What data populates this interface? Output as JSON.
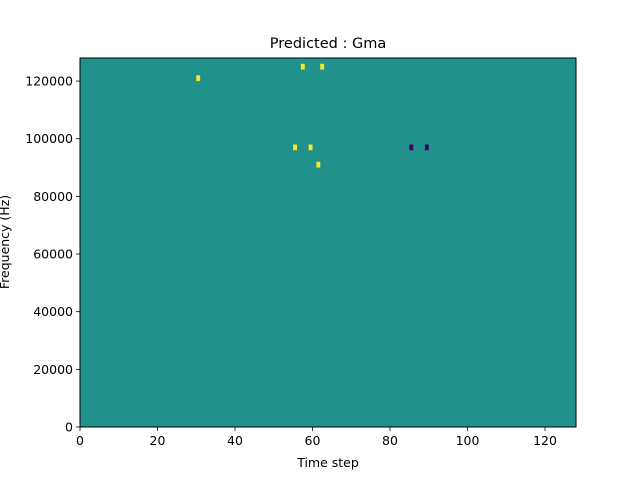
{
  "chart_data": {
    "type": "heatmap",
    "title": "Predicted : Gma",
    "xlabel": "Time step",
    "ylabel": "Frequency (Hz)",
    "xlim": [
      0,
      128
    ],
    "ylim": [
      0,
      128000
    ],
    "n_time_steps": 128,
    "n_freq_bins": 64,
    "x_ticks": [
      0,
      20,
      40,
      60,
      80,
      100,
      120
    ],
    "y_ticks": [
      0,
      20000,
      40000,
      60000,
      80000,
      100000,
      120000
    ],
    "x_tick_labels": [
      "0",
      "20",
      "40",
      "60",
      "80",
      "100",
      "120"
    ],
    "y_tick_labels": [
      "0",
      "20000",
      "40000",
      "60000",
      "80000",
      "100000",
      "120000"
    ],
    "colormap": "viridis",
    "value_levels": [
      -1,
      0,
      1
    ],
    "level_colors": {
      "-1": "#440154",
      "0": "#21918c",
      "1": "#fde725"
    },
    "background_value": 0,
    "note_cells": [
      [
        85,
        48,
        -1
      ],
      [
        89,
        48,
        -1
      ],
      [
        55,
        48,
        1
      ],
      [
        59,
        48,
        1
      ],
      [
        57,
        62,
        1
      ],
      [
        62,
        62,
        1
      ],
      [
        61,
        45,
        1
      ],
      [
        30,
        60,
        1
      ]
    ]
  }
}
